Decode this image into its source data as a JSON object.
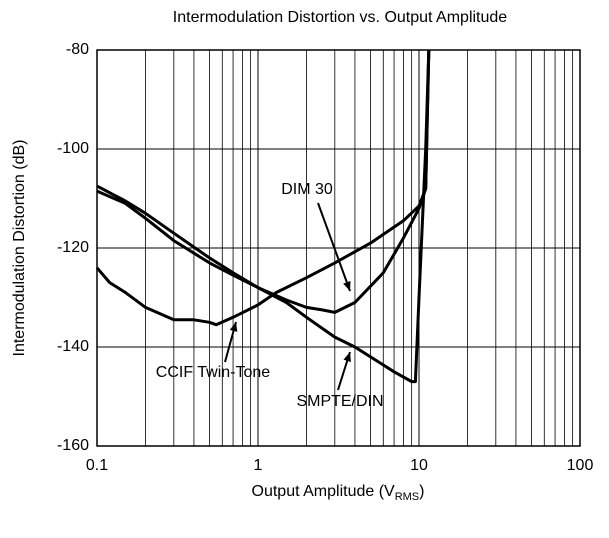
{
  "chart_data": {
    "type": "line",
    "title": "Intermodulation Distortion vs. Output Amplitude",
    "xlabel": {
      "main": "Output Amplitude (V",
      "sub": "RMS",
      "end": ")"
    },
    "ylabel": "Intermodulation Distortion (dB)",
    "xscale": "log",
    "xlim": [
      0.1,
      100
    ],
    "xticks": [
      0.1,
      1,
      10,
      100
    ],
    "ylim": [
      -160,
      -80
    ],
    "yticks": [
      -160,
      -140,
      -120,
      -100,
      -80
    ],
    "grid": true,
    "minor_grid": true,
    "series": [
      {
        "name": "CCIF Twin-Tone",
        "color": "#000000",
        "x": [
          0.1,
          0.12,
          0.15,
          0.2,
          0.3,
          0.4,
          0.5,
          0.55,
          0.7,
          1,
          1.3,
          2,
          3,
          5,
          8,
          10,
          11,
          11.5
        ],
        "values": [
          -124,
          -127,
          -129,
          -132,
          -134.5,
          -134.5,
          -135,
          -135.5,
          -134,
          -131.5,
          -129,
          -126,
          -123,
          -119,
          -114.5,
          -111.5,
          -108,
          -80
        ]
      },
      {
        "name": "DIM 30",
        "color": "#000000",
        "x": [
          0.1,
          0.15,
          0.2,
          0.3,
          0.5,
          0.7,
          1,
          1.5,
          2,
          2.5,
          3,
          4,
          6,
          8,
          10,
          11,
          11.5
        ],
        "values": [
          -107.5,
          -110.5,
          -113,
          -117,
          -122,
          -125,
          -128,
          -130.5,
          -132,
          -132.5,
          -133,
          -131,
          -125,
          -118,
          -112,
          -108,
          -80
        ]
      },
      {
        "name": "SMPTE/DIN",
        "color": "#000000",
        "x": [
          0.1,
          0.15,
          0.2,
          0.3,
          0.5,
          0.7,
          1,
          1.5,
          2,
          3,
          4,
          5,
          7,
          9,
          9.5,
          10,
          11,
          11.5
        ],
        "values": [
          -108.5,
          -111,
          -114,
          -118.5,
          -123,
          -125.5,
          -128,
          -131,
          -134,
          -138,
          -140,
          -142,
          -145,
          -147,
          -147,
          -130,
          -100,
          -80
        ]
      }
    ]
  }
}
